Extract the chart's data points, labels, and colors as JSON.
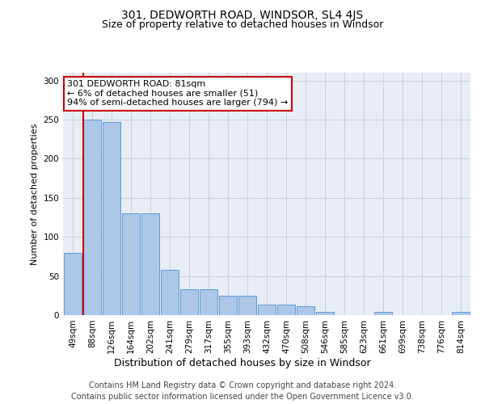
{
  "title": "301, DEDWORTH ROAD, WINDSOR, SL4 4JS",
  "subtitle": "Size of property relative to detached houses in Windsor",
  "xlabel": "Distribution of detached houses by size in Windsor",
  "ylabel": "Number of detached properties",
  "bar_labels": [
    "49sqm",
    "88sqm",
    "126sqm",
    "164sqm",
    "202sqm",
    "241sqm",
    "279sqm",
    "317sqm",
    "355sqm",
    "393sqm",
    "432sqm",
    "470sqm",
    "508sqm",
    "546sqm",
    "585sqm",
    "623sqm",
    "661sqm",
    "699sqm",
    "738sqm",
    "776sqm",
    "814sqm"
  ],
  "bar_values": [
    80,
    250,
    247,
    130,
    130,
    58,
    33,
    33,
    25,
    25,
    13,
    13,
    11,
    4,
    0,
    0,
    4,
    0,
    0,
    0,
    4
  ],
  "bar_color": "#aec6e8",
  "bar_edge_color": "#5b9bd5",
  "annotation_line1": "301 DEDWORTH ROAD: 81sqm",
  "annotation_line2": "← 6% of detached houses are smaller (51)",
  "annotation_line3": "94% of semi-detached houses are larger (794) →",
  "annotation_box_facecolor": "#ffffff",
  "annotation_box_edgecolor": "#cc0000",
  "red_line_index": 1,
  "ylim": [
    0,
    310
  ],
  "yticks": [
    0,
    50,
    100,
    150,
    200,
    250,
    300
  ],
  "grid_color": "#c8d0dc",
  "bg_color": "#e8edf5",
  "footer_line1": "Contains HM Land Registry data © Crown copyright and database right 2024.",
  "footer_line2": "Contains public sector information licensed under the Open Government Licence v3.0.",
  "title_fontsize": 10,
  "subtitle_fontsize": 9,
  "ylabel_fontsize": 8,
  "xlabel_fontsize": 9,
  "tick_fontsize": 7.5,
  "annotation_fontsize": 8,
  "footer_fontsize": 7
}
